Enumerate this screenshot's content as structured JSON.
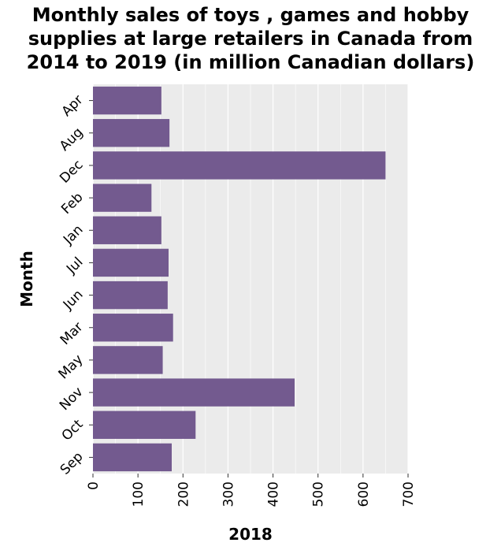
{
  "chart_data": {
    "type": "bar",
    "orientation": "horizontal",
    "title": "Monthly sales of toys , games and hobby supplies at large retailers in Canada from 2014 to 2019 (in million Canadian dollars)",
    "title_lines": [
      "Monthly sales of toys , games and hobby",
      "supplies at large retailers in Canada from",
      "2014 to 2019 (in million Canadian dollars)"
    ],
    "xlabel": "2018",
    "ylabel": "Month",
    "categories": [
      "Apr",
      "Aug",
      "Dec",
      "Feb",
      "Jan",
      "Jul",
      "Jun",
      "Mar",
      "May",
      "Nov",
      "Oct",
      "Sep"
    ],
    "values": [
      152,
      170,
      650,
      130,
      152,
      168,
      166,
      178,
      155,
      448,
      228,
      175
    ],
    "xlim": [
      0,
      700
    ],
    "xticks": [
      0,
      100,
      200,
      300,
      400,
      500,
      600,
      700
    ],
    "grid": "vertical",
    "bar_color": "#735a8f",
    "background": "#ebebeb",
    "grid_color": "#ffffff"
  }
}
